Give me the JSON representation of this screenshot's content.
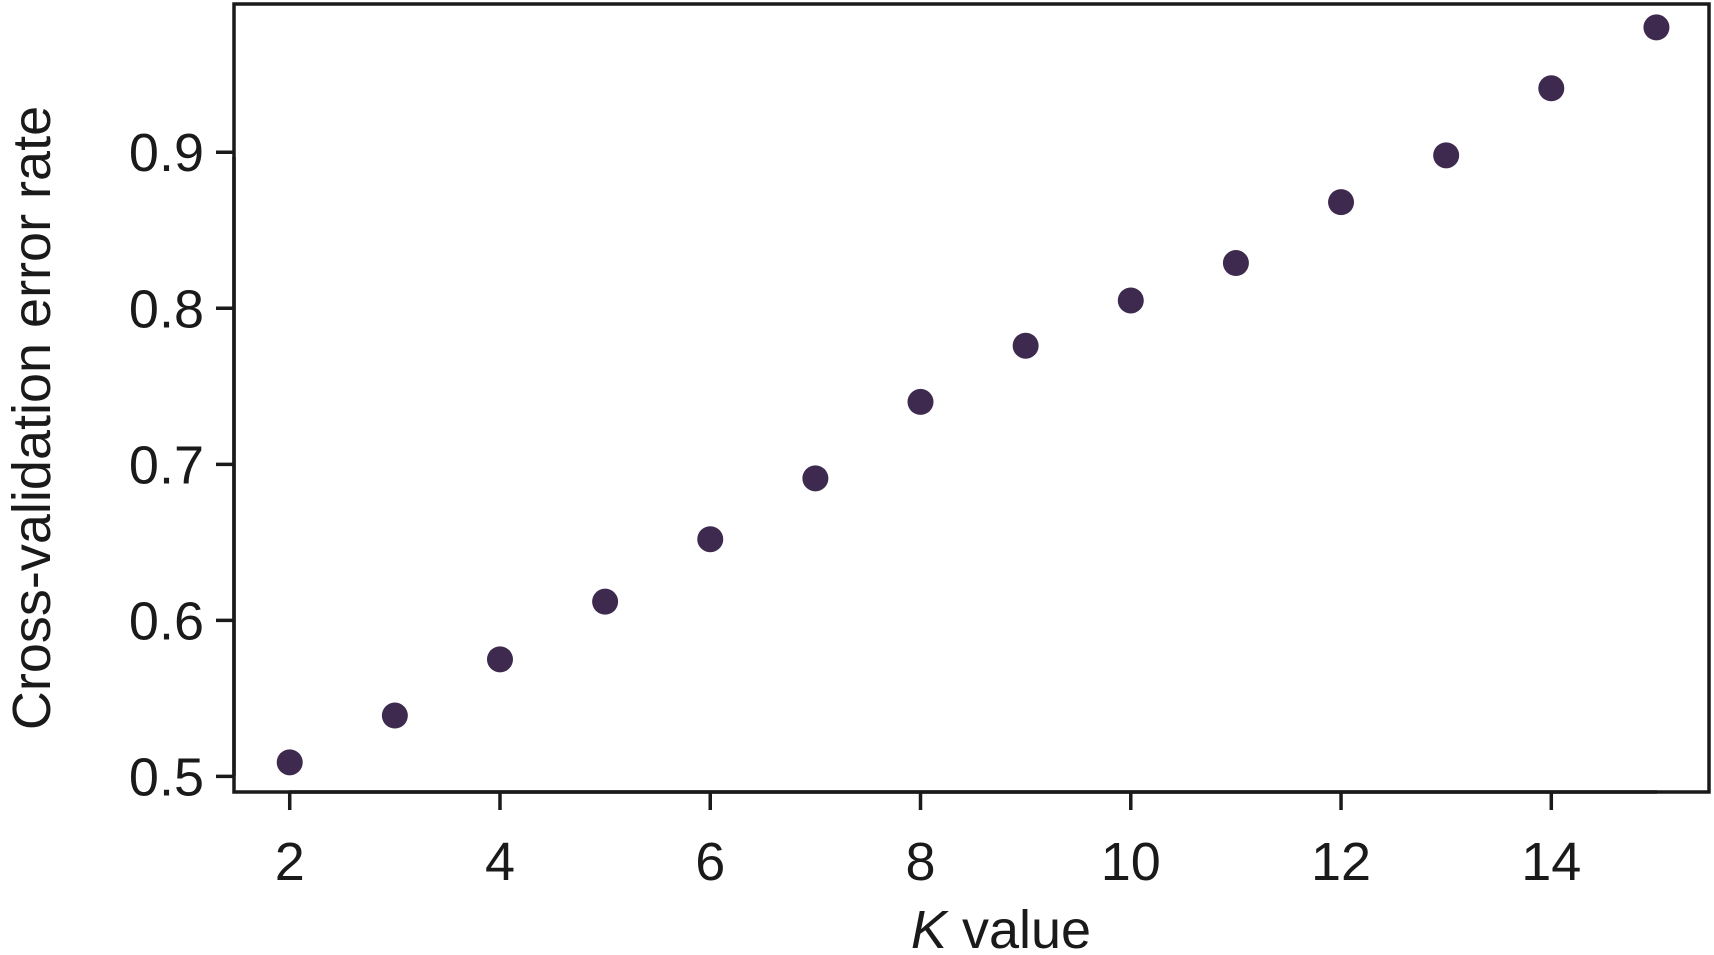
{
  "chart_data": {
    "type": "scatter",
    "title": "",
    "xlabel_italic": "K",
    "xlabel_rest": " value",
    "ylabel": "Cross-validation error rate",
    "x": [
      2,
      3,
      4,
      5,
      6,
      7,
      8,
      9,
      10,
      11,
      12,
      13,
      14,
      15
    ],
    "y": [
      0.509,
      0.539,
      0.575,
      0.612,
      0.652,
      0.691,
      0.74,
      0.776,
      0.805,
      0.829,
      0.868,
      0.898,
      0.941,
      0.98
    ],
    "xticks": [
      2,
      4,
      6,
      8,
      10,
      12,
      14
    ],
    "yticks": [
      0.5,
      0.6,
      0.7,
      0.8,
      0.9
    ],
    "ytick_labels": [
      "0.5",
      "0.6",
      "0.7",
      "0.8",
      "0.9"
    ],
    "xlim": [
      1.47,
      15.5
    ],
    "ylim": [
      0.49,
      0.995
    ],
    "grid": false,
    "legend": "none",
    "marker_color": "#3d2a4e",
    "axis_color": "#1a1a1a"
  }
}
